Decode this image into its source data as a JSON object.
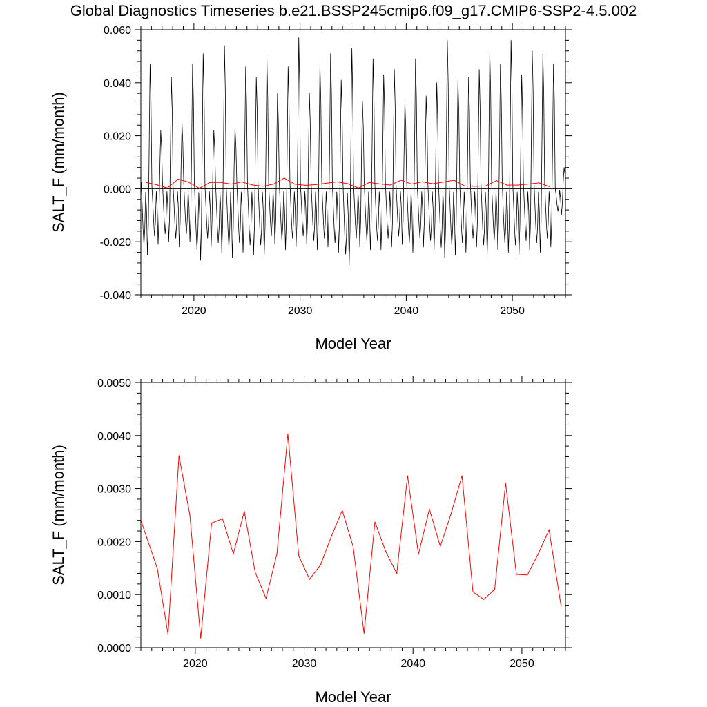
{
  "title": "Global Diagnostics Timeseries b.e21.BSSP245cmip6.f09_g17.CMIP6-SSP2-4.5.002",
  "colors": {
    "monthly": "#000000",
    "annual": "#ff0000",
    "zero_line": "#000000",
    "axis": "#000000"
  },
  "chart_data": [
    {
      "type": "line",
      "xlabel": "Model Year",
      "ylabel": "SALT_F (mm/month)",
      "xlim": [
        2015,
        2055
      ],
      "ylim": [
        -0.04,
        0.06
      ],
      "x_ticks": [
        2020,
        2030,
        2040,
        2050
      ],
      "x_tick_labels": [
        "2020",
        "2030",
        "2040",
        "2050"
      ],
      "y_ticks": [
        -0.04,
        -0.02,
        0,
        0.02,
        0.04,
        0.06
      ],
      "y_tick_labels": [
        "-0.040",
        "-0.020",
        "0.000",
        "0.020",
        "0.040",
        "0.060"
      ],
      "zero_line": true,
      "series": [
        {
          "color": "#000000",
          "style": "monthly",
          "x_start": 2015.04,
          "x_step": 0.0833333,
          "annual_peaks": [
            0.047,
            0.022,
            0.042,
            0.025,
            0.047,
            0.051,
            0.022,
            0.054,
            0.023,
            0.046,
            0.042,
            0.049,
            0.036,
            0.046,
            0.057,
            0.036,
            0.047,
            0.051,
            0.041,
            0.053,
            0.033,
            0.049,
            0.043,
            0.045,
            0.033,
            0.049,
            0.035,
            0.04,
            0.056,
            0.041,
            0.042,
            0.045,
            0.052,
            0.047,
            0.056,
            0.043,
            0.052,
            0.051,
            0.047,
            0.008
          ],
          "annual_troughs": [
            -0.025,
            -0.021,
            -0.02,
            -0.022,
            -0.02,
            -0.027,
            -0.022,
            -0.024,
            -0.026,
            -0.024,
            -0.025,
            -0.025,
            -0.021,
            -0.023,
            -0.022,
            -0.021,
            -0.023,
            -0.022,
            -0.024,
            -0.029,
            -0.022,
            -0.023,
            -0.023,
            -0.022,
            -0.021,
            -0.024,
            -0.022,
            -0.023,
            -0.026,
            -0.025,
            -0.024,
            -0.022,
            -0.025,
            -0.023,
            -0.024,
            -0.025,
            -0.023,
            -0.024,
            -0.022,
            -0.01
          ]
        },
        {
          "color": "#ff0000",
          "style": "annual",
          "x": [
            2015.5,
            2016.5,
            2017.5,
            2018.5,
            2019.5,
            2020.5,
            2021.5,
            2022.5,
            2023.5,
            2024.5,
            2025.5,
            2026.5,
            2027.5,
            2028.5,
            2029.5,
            2030.5,
            2031.5,
            2032.5,
            2033.5,
            2034.5,
            2035.5,
            2036.5,
            2037.5,
            2038.5,
            2039.5,
            2040.5,
            2041.5,
            2042.5,
            2043.5,
            2044.5,
            2045.5,
            2046.5,
            2047.5,
            2048.5,
            2049.5,
            2050.5,
            2051.5,
            2052.5,
            2053.5
          ],
          "values": [
            0.0024,
            0.0015,
            0.00025,
            0.00362,
            0.0025,
            0.00018,
            0.00235,
            0.00243,
            0.00177,
            0.00257,
            0.00142,
            0.00093,
            0.00177,
            0.00403,
            0.00173,
            0.00129,
            0.00156,
            0.0021,
            0.00259,
            0.0019,
            0.00027,
            0.00237,
            0.00181,
            0.0014,
            0.00324,
            0.00176,
            0.00261,
            0.00191,
            0.00253,
            0.00324,
            0.00105,
            0.00091,
            0.0011,
            0.0031,
            0.00138,
            0.00137,
            0.00177,
            0.00222,
            0.00078
          ]
        }
      ]
    },
    {
      "type": "line",
      "xlabel": "Model Year",
      "ylabel": "SALT_F (mm/month)",
      "xlim": [
        2015,
        2054
      ],
      "ylim": [
        0,
        0.005
      ],
      "x_ticks": [
        2020,
        2030,
        2040,
        2050
      ],
      "x_tick_labels": [
        "2020",
        "2030",
        "2040",
        "2050"
      ],
      "y_ticks": [
        0,
        0.001,
        0.002,
        0.003,
        0.004,
        0.005
      ],
      "y_tick_labels": [
        "0.0000",
        "0.0010",
        "0.0020",
        "0.0030",
        "0.0040",
        "0.0050"
      ],
      "series": [
        {
          "color": "#ff0000",
          "style": "annual",
          "x": [
            2015.0,
            2016.5,
            2017.5,
            2018.5,
            2019.5,
            2020.5,
            2021.5,
            2022.5,
            2023.5,
            2024.5,
            2025.5,
            2026.5,
            2027.5,
            2028.5,
            2029.5,
            2030.5,
            2031.5,
            2032.5,
            2033.5,
            2034.5,
            2035.5,
            2036.5,
            2037.5,
            2038.5,
            2039.5,
            2040.5,
            2041.5,
            2042.5,
            2043.5,
            2044.5,
            2045.5,
            2046.5,
            2047.5,
            2048.5,
            2049.5,
            2050.5,
            2051.5,
            2052.5,
            2053.6
          ],
          "values": [
            0.0024,
            0.0015,
            0.00025,
            0.00362,
            0.0025,
            0.00018,
            0.00235,
            0.00243,
            0.00177,
            0.00257,
            0.00142,
            0.00093,
            0.00177,
            0.00403,
            0.00173,
            0.00129,
            0.00156,
            0.0021,
            0.00259,
            0.0019,
            0.00027,
            0.00237,
            0.00181,
            0.0014,
            0.00324,
            0.00176,
            0.00261,
            0.00191,
            0.00253,
            0.00324,
            0.00105,
            0.00091,
            0.0011,
            0.0031,
            0.00138,
            0.00137,
            0.00177,
            0.00222,
            0.00078
          ]
        }
      ]
    }
  ]
}
